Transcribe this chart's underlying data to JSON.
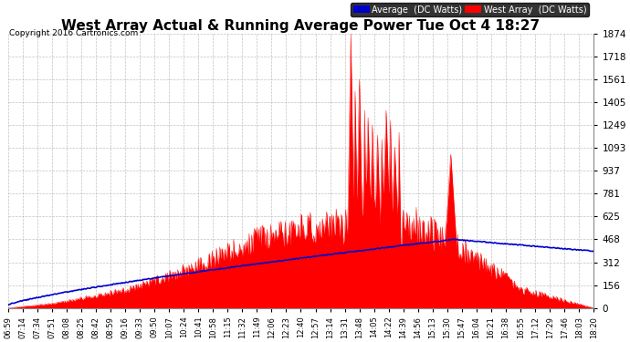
{
  "title": "West Array Actual & Running Average Power Tue Oct 4 18:27",
  "copyright": "Copyright 2016 Cartronics.com",
  "yticks": [
    0.0,
    156.1,
    312.3,
    468.4,
    624.6,
    780.7,
    936.8,
    1093.0,
    1249.1,
    1405.3,
    1561.4,
    1717.5,
    1873.7
  ],
  "ylim": [
    0,
    1873.7
  ],
  "background_color": "#ffffff",
  "plot_bg_color": "#ffffff",
  "grid_color": "#bbbbbb",
  "fill_color": "#ff0000",
  "avg_color": "#0000cc",
  "title_fontsize": 11,
  "legend_labels": [
    "Average  (DC Watts)",
    "West Array  (DC Watts)"
  ],
  "legend_bg_colors": [
    "#0000cc",
    "#ff0000"
  ],
  "x_labels": [
    "06:59",
    "07:14",
    "07:34",
    "07:51",
    "08:08",
    "08:25",
    "08:42",
    "08:59",
    "09:16",
    "09:33",
    "09:50",
    "10:07",
    "10:24",
    "10:41",
    "10:58",
    "11:15",
    "11:32",
    "11:49",
    "12:06",
    "12:23",
    "12:40",
    "12:57",
    "13:14",
    "13:31",
    "13:48",
    "14:05",
    "14:22",
    "14:39",
    "14:56",
    "15:13",
    "15:30",
    "15:47",
    "16:04",
    "16:21",
    "16:38",
    "16:55",
    "17:12",
    "17:29",
    "17:46",
    "18:03",
    "18:20"
  ]
}
